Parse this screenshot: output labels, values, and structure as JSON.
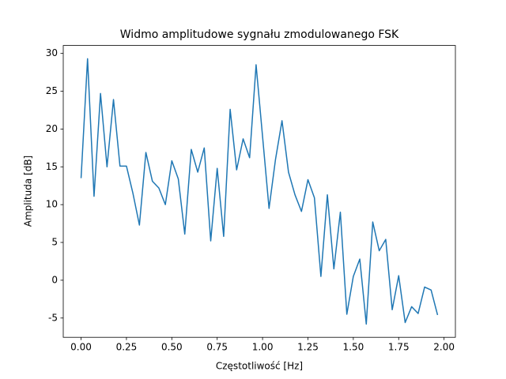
{
  "chart_data": {
    "type": "line",
    "title": "Widmo amplitudowe sygnału zmodulowanego FSK",
    "x_label": "Częstotliwość [Hz]",
    "y_label": "Amplituda [dB]",
    "x": [
      0,
      0.0357,
      0.0714,
      0.1071,
      0.1429,
      0.1786,
      0.2143,
      0.25,
      0.2857,
      0.3214,
      0.3571,
      0.3929,
      0.4286,
      0.4643,
      0.5,
      0.5357,
      0.5714,
      0.6071,
      0.6429,
      0.6786,
      0.7143,
      0.75,
      0.7857,
      0.8214,
      0.8571,
      0.8929,
      0.9286,
      0.9643,
      1,
      1.0357,
      1.0714,
      1.1071,
      1.1429,
      1.1786,
      1.2143,
      1.25,
      1.2857,
      1.3214,
      1.3571,
      1.3929,
      1.4286,
      1.4643,
      1.5,
      1.5357,
      1.5714,
      1.6071,
      1.6429,
      1.6786,
      1.7143,
      1.75,
      1.7857,
      1.8214,
      1.8571,
      1.8929,
      1.9286,
      1.9643
    ],
    "series": [
      {
        "color": "#1f77b4",
        "values": [
          13.5,
          29.3,
          11.1,
          24.7,
          15.0,
          23.9,
          15.1,
          15.1,
          11.5,
          7.3,
          16.9,
          13.1,
          12.2,
          10.0,
          15.8,
          13.4,
          6.1,
          17.3,
          14.3,
          17.5,
          5.2,
          14.8,
          5.8,
          22.6,
          14.6,
          18.7,
          16.2,
          28.5,
          19.0,
          9.5,
          16.0,
          21.1,
          14.3,
          11.3,
          9.1,
          13.3,
          10.9,
          0.5,
          11.3,
          1.5,
          9.0,
          -4.5,
          0.5,
          2.8,
          -5.8,
          7.7,
          3.9,
          5.4,
          -3.9,
          0.6,
          -5.6,
          -3.5,
          -4.4,
          -0.9,
          -1.3,
          -4.6
        ]
      }
    ],
    "xlim": [
      -0.0982,
      2.0625
    ],
    "ylim": [
      -7.55,
      31.05
    ],
    "xticks": [
      {
        "value": 0,
        "label": "0.00"
      },
      {
        "value": 0.25,
        "label": "0.25"
      },
      {
        "value": 0.5,
        "label": "0.50"
      },
      {
        "value": 0.75,
        "label": "0.75"
      },
      {
        "value": 1,
        "label": "1.00"
      },
      {
        "value": 1.25,
        "label": "1.25"
      },
      {
        "value": 1.5,
        "label": "1.50"
      },
      {
        "value": 1.75,
        "label": "1.75"
      },
      {
        "value": 2,
        "label": "2.00"
      }
    ],
    "yticks": [
      -5,
      0,
      5,
      10,
      15,
      20,
      25,
      30
    ]
  }
}
